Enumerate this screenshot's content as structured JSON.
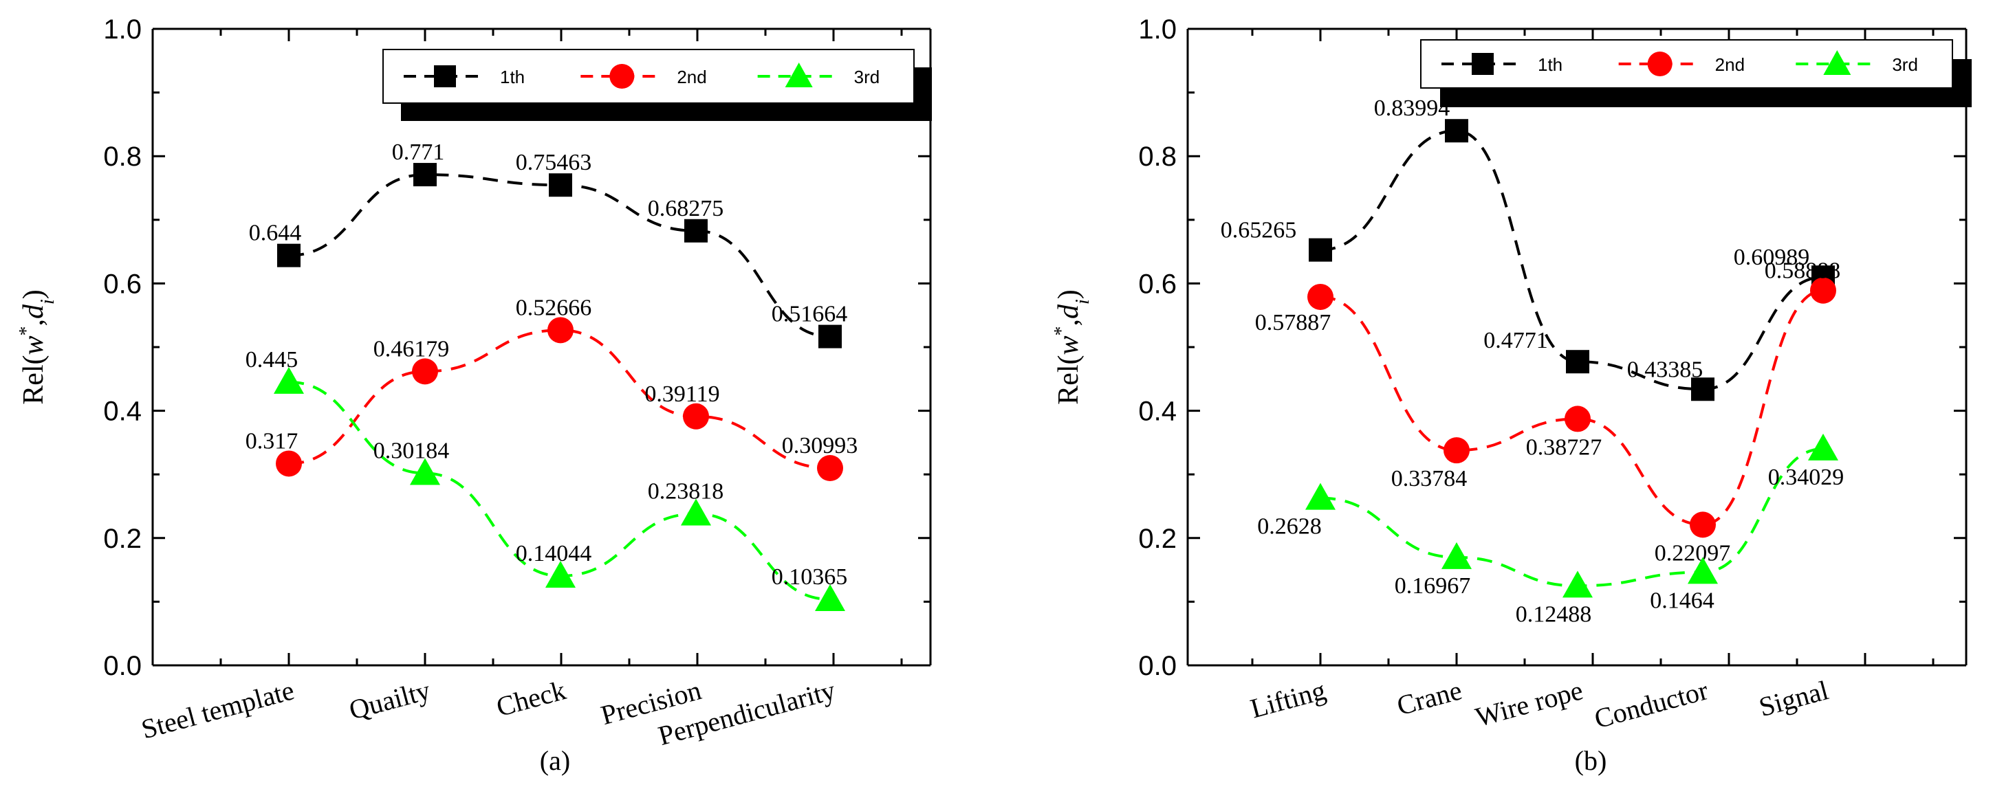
{
  "chart_data": [
    {
      "type": "line",
      "panel_label": "(a)",
      "ylabel": "Rel(w*,di)",
      "ylabel_parts": {
        "prefix": "Rel(",
        "w": "w",
        "star": "*",
        "comma": ",",
        "d": "d",
        "sub": "i",
        "suffix": ")"
      },
      "ylim": [
        0,
        1.0
      ],
      "yticks": [
        "0.0",
        "0.2",
        "0.4",
        "0.6",
        "0.8",
        "1.0"
      ],
      "categories": [
        "Steel template",
        "Quailty",
        "Check",
        "Precision",
        "Perpendicularity"
      ],
      "legend_position": "top-right",
      "series": [
        {
          "name": "1th",
          "color": "#000000",
          "marker": "square",
          "values": [
            0.644,
            0.771,
            0.75463,
            0.68275,
            0.51664
          ],
          "labels": [
            "0.644",
            "0.771",
            "0.75463",
            "0.68275",
            "0.51664"
          ]
        },
        {
          "name": "2nd",
          "color": "#ff0000",
          "marker": "circle",
          "values": [
            0.317,
            0.46179,
            0.52666,
            0.39119,
            0.30993
          ],
          "labels": [
            "0.317",
            "0.46179",
            "0.52666",
            "0.39119",
            "0.30993"
          ]
        },
        {
          "name": "3rd",
          "color": "#00ff00",
          "marker": "triangle",
          "values": [
            0.445,
            0.30184,
            0.14044,
            0.23818,
            0.10365
          ],
          "labels": [
            "0.445",
            "0.30184",
            "0.14044",
            "0.23818",
            "0.10365"
          ]
        }
      ]
    },
    {
      "type": "line",
      "panel_label": "(b)",
      "ylabel": "Rel(w*,di)",
      "ylabel_parts": {
        "prefix": "Rel(",
        "w": "w",
        "star": "*",
        "comma": ",",
        "d": "d",
        "sub": "i",
        "suffix": ")"
      },
      "ylim": [
        0,
        1.0
      ],
      "yticks": [
        "0.0",
        "0.2",
        "0.4",
        "0.6",
        "0.8",
        "1.0"
      ],
      "categories": [
        "Lifting",
        "Crane",
        "Wire rope",
        "Conductor",
        "Signal"
      ],
      "legend_position": "top-right",
      "series": [
        {
          "name": "1th",
          "color": "#000000",
          "marker": "square",
          "values": [
            0.65265,
            0.83994,
            0.4771,
            0.43385,
            0.60989
          ],
          "labels": [
            "0.65265",
            "0.83994",
            "0.4771",
            "0.43385",
            "0.60989"
          ]
        },
        {
          "name": "2nd",
          "color": "#ff0000",
          "marker": "circle",
          "values": [
            0.57887,
            0.33784,
            0.38727,
            0.22097,
            0.58888
          ],
          "labels": [
            "0.57887",
            "0.33784",
            "0.38727",
            "0.22097",
            "0.58888"
          ]
        },
        {
          "name": "3rd",
          "color": "#00ff00",
          "marker": "triangle",
          "values": [
            0.2628,
            0.16967,
            0.12488,
            0.1464,
            0.34029
          ],
          "labels": [
            "0.2628",
            "0.16967",
            "0.12488",
            "0.1464",
            "0.34029"
          ]
        }
      ]
    }
  ]
}
